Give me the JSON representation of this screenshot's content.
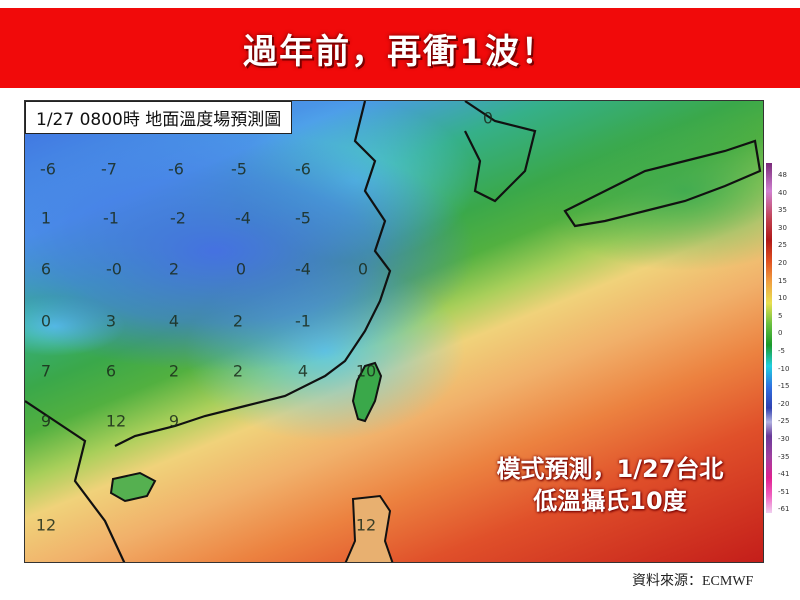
{
  "banner": {
    "title": "過年前，再衝1波！",
    "color": "#f10a0a"
  },
  "map": {
    "title": "1/27  0800時  地面溫度場預測圖",
    "temperature_labels": [
      "-6",
      "-7",
      "-6",
      "-5",
      "-6",
      "1",
      "-1",
      "-2",
      "-4",
      "-5",
      "6",
      "-0",
      "2",
      "0",
      "-4",
      "0",
      "0",
      "3",
      "4",
      "2",
      "-1",
      "7",
      "6",
      "2",
      "2",
      "4",
      "10",
      "9",
      "12",
      "9",
      "12",
      "12",
      "0"
    ],
    "annotation_line1": "模式預測，1/27台北",
    "annotation_line2": "低溫攝氏10度"
  },
  "colorbar": {
    "ticks": [
      "48",
      "40",
      "35",
      "30",
      "25",
      "20",
      "15",
      "10",
      "5",
      "0",
      "-5",
      "-10",
      "-15",
      "-20",
      "-25",
      "-30",
      "-35",
      "-41",
      "-51",
      "-61"
    ]
  },
  "source": "資料來源：ECMWF"
}
